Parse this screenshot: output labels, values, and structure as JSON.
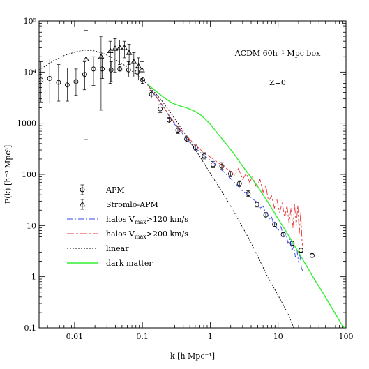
{
  "chart_data": {
    "type": "line",
    "xscale": "log",
    "yscale": "log",
    "xlim": [
      0.003,
      100
    ],
    "ylim": [
      0.1,
      100000
    ],
    "xlabel": "k [h Mpc⁻¹]",
    "ylabel": "P(k) [h⁻³ Mpc³]",
    "annotation_title": "ΛCDM 60h⁻¹ Mpc box",
    "annotation_z": "Z=0",
    "x_ticks": [
      {
        "value": 0.01,
        "label": "0.01"
      },
      {
        "value": 0.1,
        "label": "0.1"
      },
      {
        "value": 1,
        "label": "1"
      },
      {
        "value": 10,
        "label": "10"
      },
      {
        "value": 100,
        "label": "100"
      }
    ],
    "y_ticks": [
      {
        "value": 0.1,
        "label": "0.1"
      },
      {
        "value": 1,
        "label": "1"
      },
      {
        "value": 10,
        "label": "10"
      },
      {
        "value": 100,
        "label": "100"
      },
      {
        "value": 1000,
        "label": "1000"
      },
      {
        "value": 10000,
        "label": "10⁴"
      },
      {
        "value": 100000,
        "label": "10⁵"
      }
    ],
    "series": [
      {
        "name": "APM",
        "kind": "points-circle",
        "color": "#000000",
        "points": [
          {
            "x": 0.0032,
            "y": 7000,
            "ylo": 2600,
            "yhi": 16000
          },
          {
            "x": 0.0043,
            "y": 7500,
            "ylo": 2500,
            "yhi": 18000
          },
          {
            "x": 0.0058,
            "y": 6300,
            "ylo": 2700,
            "yhi": 14000
          },
          {
            "x": 0.0078,
            "y": 5600,
            "ylo": 2700,
            "yhi": 12000
          },
          {
            "x": 0.0105,
            "y": 6500,
            "ylo": 3500,
            "yhi": 11500
          },
          {
            "x": 0.0141,
            "y": 9000,
            "ylo": 4500,
            "yhi": 16000
          },
          {
            "x": 0.019,
            "y": 11500,
            "ylo": 5500,
            "yhi": 20000
          },
          {
            "x": 0.0256,
            "y": 11500,
            "ylo": 7500,
            "yhi": 19000
          },
          {
            "x": 0.0345,
            "y": 11000,
            "ylo": 6500,
            "yhi": 16000
          },
          {
            "x": 0.0465,
            "y": 11500,
            "ylo": 10500,
            "yhi": 13000
          },
          {
            "x": 0.0625,
            "y": 11000,
            "ylo": 8000,
            "yhi": 16000
          },
          {
            "x": 0.084,
            "y": 10000,
            "ylo": 8000,
            "yhi": 12500
          },
          {
            "x": 0.101,
            "y": 7000,
            "ylo": 6000,
            "yhi": 8000
          },
          {
            "x": 0.136,
            "y": 3700,
            "ylo": 3100,
            "yhi": 4400
          },
          {
            "x": 0.183,
            "y": 1900,
            "ylo": 1600,
            "yhi": 2300
          },
          {
            "x": 0.247,
            "y": 1150,
            "ylo": 1000,
            "yhi": 1300
          },
          {
            "x": 0.333,
            "y": 730,
            "ylo": 630,
            "yhi": 850
          },
          {
            "x": 0.449,
            "y": 490,
            "ylo": 430,
            "yhi": 560
          },
          {
            "x": 0.605,
            "y": 330,
            "ylo": 290,
            "yhi": 375
          },
          {
            "x": 0.815,
            "y": 230,
            "ylo": 200,
            "yhi": 265
          },
          {
            "x": 1.1,
            "y": 155,
            "ylo": 135,
            "yhi": 180
          },
          {
            "x": 1.48,
            "y": 145,
            "ylo": 125,
            "yhi": 170
          },
          {
            "x": 1.99,
            "y": 102,
            "ylo": 90,
            "yhi": 115
          },
          {
            "x": 2.69,
            "y": 66,
            "ylo": 58,
            "yhi": 75
          },
          {
            "x": 3.62,
            "y": 42,
            "ylo": 37,
            "yhi": 48
          },
          {
            "x": 4.88,
            "y": 26,
            "ylo": 23,
            "yhi": 29
          },
          {
            "x": 6.58,
            "y": 16,
            "ylo": 14,
            "yhi": 18
          },
          {
            "x": 8.86,
            "y": 10.5,
            "ylo": 9.5,
            "yhi": 11.5
          },
          {
            "x": 11.9,
            "y": 6.7,
            "ylo": 6.1,
            "yhi": 7.3
          },
          {
            "x": 16.1,
            "y": 4.5,
            "ylo": 4.1,
            "yhi": 4.9
          },
          {
            "x": 21.7,
            "y": 3.3,
            "ylo": 3.0,
            "yhi": 3.6
          },
          {
            "x": 31.7,
            "y": 2.6,
            "ylo": 2.4,
            "yhi": 2.8
          }
        ]
      },
      {
        "name": "Stromlo-APM",
        "kind": "points-triangle",
        "color": "#000000",
        "points": [
          {
            "x": 0.0148,
            "y": 18000,
            "ylo": 480,
            "yhi": 65000
          },
          {
            "x": 0.0246,
            "y": 20000,
            "ylo": 1800,
            "yhi": 50000
          },
          {
            "x": 0.0337,
            "y": 26000,
            "ylo": 6000,
            "yhi": 40000
          },
          {
            "x": 0.0395,
            "y": 29000,
            "ylo": 10000,
            "yhi": 45000
          },
          {
            "x": 0.0463,
            "y": 30000,
            "ylo": 14000,
            "yhi": 42000
          },
          {
            "x": 0.0543,
            "y": 30000,
            "ylo": 19000,
            "yhi": 40000
          },
          {
            "x": 0.0637,
            "y": 24000,
            "ylo": 14000,
            "yhi": 35000
          },
          {
            "x": 0.0747,
            "y": 16000,
            "ylo": 8000,
            "yhi": 24000
          },
          {
            "x": 0.0876,
            "y": 13000,
            "ylo": 7000,
            "yhi": 19000
          },
          {
            "x": 0.0983,
            "y": 11000,
            "ylo": 7000,
            "yhi": 16000
          }
        ]
      },
      {
        "name": "halos V_max>120 km/s",
        "legend_main": "halos V",
        "legend_sub": "max",
        "legend_rest": ">120 km/s",
        "kind": "line",
        "dash": "8,3,2,3",
        "color": "#3344ee",
        "x": [
          0.12,
          0.14,
          0.17,
          0.2,
          0.25,
          0.3,
          0.4,
          0.5,
          0.6,
          0.75,
          0.9,
          1.1,
          1.3,
          1.6,
          2.0,
          2.5,
          3.0,
          3.5,
          4.0,
          4.5,
          5.0,
          5.5,
          6.0,
          6.5,
          7.0,
          7.5,
          8.0,
          8.5,
          9.0,
          9.5,
          10.0,
          11.0,
          12.0,
          13.0,
          14.0,
          15.0,
          16.0,
          17.0,
          18.0,
          19.0,
          20.0,
          21.0,
          22.0,
          23.0
        ],
        "y": [
          5600,
          4200,
          2900,
          2150,
          1350,
          950,
          600,
          420,
          330,
          255,
          210,
          172,
          140,
          110,
          83,
          61,
          47,
          42,
          35,
          31,
          28,
          22,
          24,
          18,
          17,
          13.5,
          15,
          11,
          12,
          9,
          8,
          9.5,
          6,
          7,
          4.5,
          5.5,
          3.2,
          4,
          2.4,
          3.3,
          1.9,
          2.8,
          1.5,
          1.3
        ]
      },
      {
        "name": "halos V_max>200 km/s",
        "legend_main": "halos V",
        "legend_sub": "max",
        "legend_rest": ">200 km/s",
        "kind": "line",
        "dash": "10,3,3,3",
        "color": "#e83333",
        "x": [
          0.12,
          0.14,
          0.17,
          0.2,
          0.25,
          0.3,
          0.4,
          0.5,
          0.6,
          0.75,
          0.9,
          1.1,
          1.3,
          1.6,
          2.0,
          2.3,
          2.6,
          3.0,
          3.4,
          3.8,
          4.2,
          4.8,
          5.4,
          6.0,
          6.6,
          7.2,
          8.0,
          8.8,
          9.6,
          10.5,
          11.5,
          12.5,
          13.5,
          14.5,
          15.5,
          16.5,
          17.5,
          18.5,
          19.5,
          20.5,
          21.5,
          22.5,
          23.0
        ],
        "y": [
          5500,
          4200,
          3000,
          2200,
          1400,
          1000,
          660,
          480,
          380,
          290,
          240,
          200,
          170,
          140,
          115,
          95,
          130,
          80,
          105,
          70,
          90,
          55,
          80,
          45,
          60,
          30,
          38,
          22,
          32,
          18,
          28,
          14,
          25,
          11,
          22,
          9,
          26,
          10,
          25,
          7,
          18,
          5,
          4
        ]
      },
      {
        "name": "linear",
        "kind": "line",
        "dash": "2,2",
        "color": "#000000",
        "x": [
          0.003,
          0.004,
          0.005,
          0.007,
          0.01,
          0.014,
          0.02,
          0.028,
          0.04,
          0.055,
          0.07,
          0.09,
          0.12,
          0.16,
          0.2,
          0.28,
          0.4,
          0.55,
          0.7,
          1.0,
          1.5,
          2.0,
          3.0,
          4.0,
          5.0,
          7.0,
          10.0,
          14.0,
          17.0
        ],
        "y": [
          11000,
          14000,
          17000,
          21000,
          24500,
          27000,
          26000,
          22500,
          17500,
          13500,
          10500,
          8000,
          5700,
          3700,
          2600,
          1400,
          700,
          360,
          225,
          105,
          45,
          24,
          9.2,
          4.6,
          2.5,
          1.0,
          0.43,
          0.19,
          0.1
        ]
      },
      {
        "name": "dark matter",
        "kind": "line",
        "dash": "",
        "color": "#33ee33",
        "x": [
          0.12,
          0.15,
          0.2,
          0.27,
          0.35,
          0.45,
          0.6,
          0.75,
          1.0,
          1.3,
          1.7,
          2.2,
          3.0,
          4.0,
          5.0,
          6.5,
          8.0,
          10.0,
          13.0,
          17.0,
          22.0,
          28.0,
          35.0,
          45.0,
          55.0,
          65.0,
          75.0,
          85.0,
          95.0
        ],
        "y": [
          5700,
          4500,
          3300,
          2500,
          2200,
          2000,
          1700,
          1400,
          960,
          620,
          400,
          260,
          145,
          87,
          58,
          34,
          22,
          13.5,
          7.8,
          4.3,
          2.4,
          1.4,
          0.85,
          0.5,
          0.32,
          0.22,
          0.16,
          0.12,
          0.1
        ]
      }
    ],
    "legend": {
      "placement": "lower-left",
      "items": [
        {
          "label": "APM",
          "kind": "points-circle",
          "color": "#000000"
        },
        {
          "label": "Stromlo-APM",
          "kind": "points-triangle",
          "color": "#000000"
        },
        {
          "label_main": "halos V",
          "label_sub": "max",
          "label_rest": ">120 km/s",
          "kind": "line",
          "dash": "8,3,2,3",
          "color": "#3344ee"
        },
        {
          "label_main": "halos V",
          "label_sub": "max",
          "label_rest": ">200 km/s",
          "kind": "line",
          "dash": "10,3,3,3",
          "color": "#e83333"
        },
        {
          "label": "linear",
          "kind": "line",
          "dash": "2,2",
          "color": "#000000"
        },
        {
          "label": "dark matter",
          "kind": "line",
          "dash": "",
          "color": "#33ee33"
        }
      ]
    },
    "grid": false
  }
}
